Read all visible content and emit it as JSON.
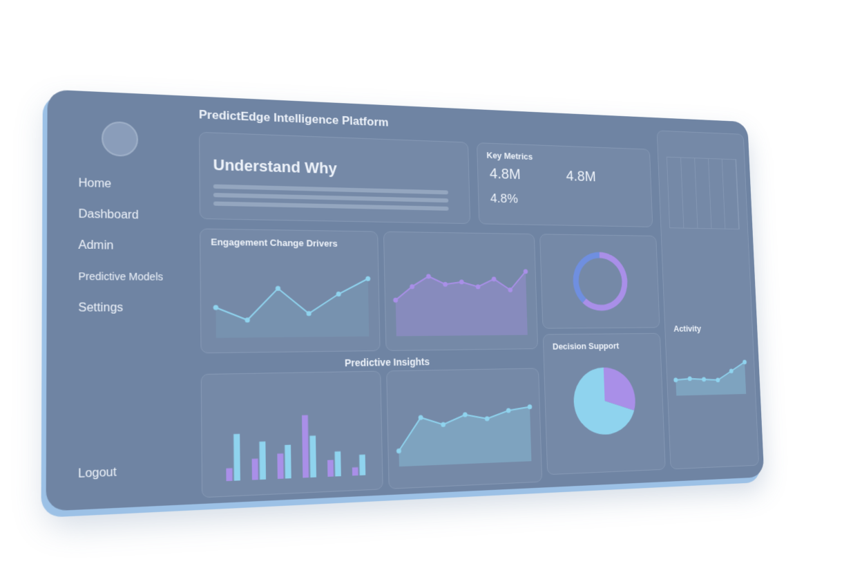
{
  "app": {
    "title": "PredictEdge Intelligence Platform"
  },
  "sidebar": {
    "nav": [
      "Home",
      "Dashboard",
      "Admin",
      "Predictive Models",
      "Settings"
    ],
    "logout": "Logout"
  },
  "hero": {
    "title": "Understand Why"
  },
  "key_metrics": {
    "title": "Key Metrics",
    "metrics": [
      "4.8M",
      "4.8%",
      "4.8M"
    ]
  },
  "section": {
    "title": "Predictive Insights"
  },
  "charts": [
    {
      "type": "line",
      "title": "Engagement Change Drivers",
      "values": [
        38,
        22,
        62,
        30,
        55,
        75
      ],
      "ylim": [
        0,
        100
      ],
      "color": "#8fd3ee"
    },
    {
      "type": "area",
      "values": [
        45,
        62,
        75,
        65,
        68,
        62,
        72,
        58,
        82
      ],
      "ylim": [
        0,
        100
      ],
      "color": "#a98fe8"
    },
    {
      "type": "bar",
      "ylim": [
        0,
        100
      ],
      "series": [
        {
          "color": "#a98fe8",
          "values": [
            15,
            25,
            30,
            75,
            20,
            10
          ]
        },
        {
          "color": "#8fd3ee",
          "values": [
            55,
            45,
            40,
            50,
            30,
            25
          ]
        }
      ]
    },
    {
      "type": "area",
      "values": [
        20,
        62,
        52,
        64,
        58,
        68,
        72
      ],
      "ylim": [
        0,
        100
      ],
      "color": "#8fd3ee"
    },
    {
      "type": "donut",
      "values": [
        62,
        38
      ],
      "colors": [
        "#a98fe8",
        "#6f8fe0"
      ]
    },
    {
      "type": "pie",
      "title": "Decision Support",
      "values": [
        30,
        70
      ],
      "colors": [
        "#a98fe8",
        "#8fd3ee"
      ]
    },
    {
      "type": "area",
      "title": "Activity",
      "values": [
        30,
        32,
        30,
        28,
        45,
        62
      ],
      "ylim": [
        0,
        100
      ],
      "color": "#8fd3ee"
    }
  ]
}
